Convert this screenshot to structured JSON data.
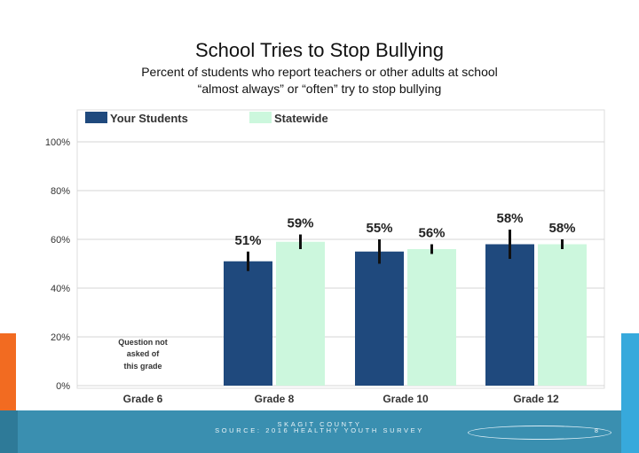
{
  "slide": {
    "title": "School Tries to Stop Bullying",
    "subtitle_line1": "Percent of students who report teachers or other adults at school",
    "subtitle_line2": "“almost always” or “often” try to stop bullying",
    "footer_line1": "SKAGIT COUNTY",
    "footer_line2": "SOURCE: 2016 HEALTHY YOUTH SURVEY",
    "page_number": "8"
  },
  "colors": {
    "your_students": "#1f497d",
    "statewide": "#ccf7dd",
    "error_bar": "#111111",
    "axis_text": "#333333",
    "grid_line": "#d4d4d4"
  },
  "chart_data": {
    "type": "bar",
    "title": "School Tries to Stop Bullying",
    "categories": [
      "Grade 6",
      "Grade 8",
      "Grade 10",
      "Grade 12"
    ],
    "series": [
      {
        "name": "Your Students",
        "values": [
          null,
          51,
          55,
          58
        ],
        "labels": [
          "",
          "51%",
          "55%",
          "58%"
        ],
        "error": [
          null,
          4,
          5,
          6
        ]
      },
      {
        "name": "Statewide",
        "values": [
          null,
          59,
          56,
          58
        ],
        "labels": [
          "",
          "59%",
          "56%",
          "58%"
        ],
        "error": [
          null,
          3,
          2,
          2
        ]
      }
    ],
    "yticks": [
      "0%",
      "20%",
      "40%",
      "60%",
      "80%",
      "100%"
    ],
    "ylim": [
      0,
      100
    ],
    "missing_note": [
      "Question not",
      "asked of",
      "this grade"
    ],
    "legend_position": "top-left"
  }
}
